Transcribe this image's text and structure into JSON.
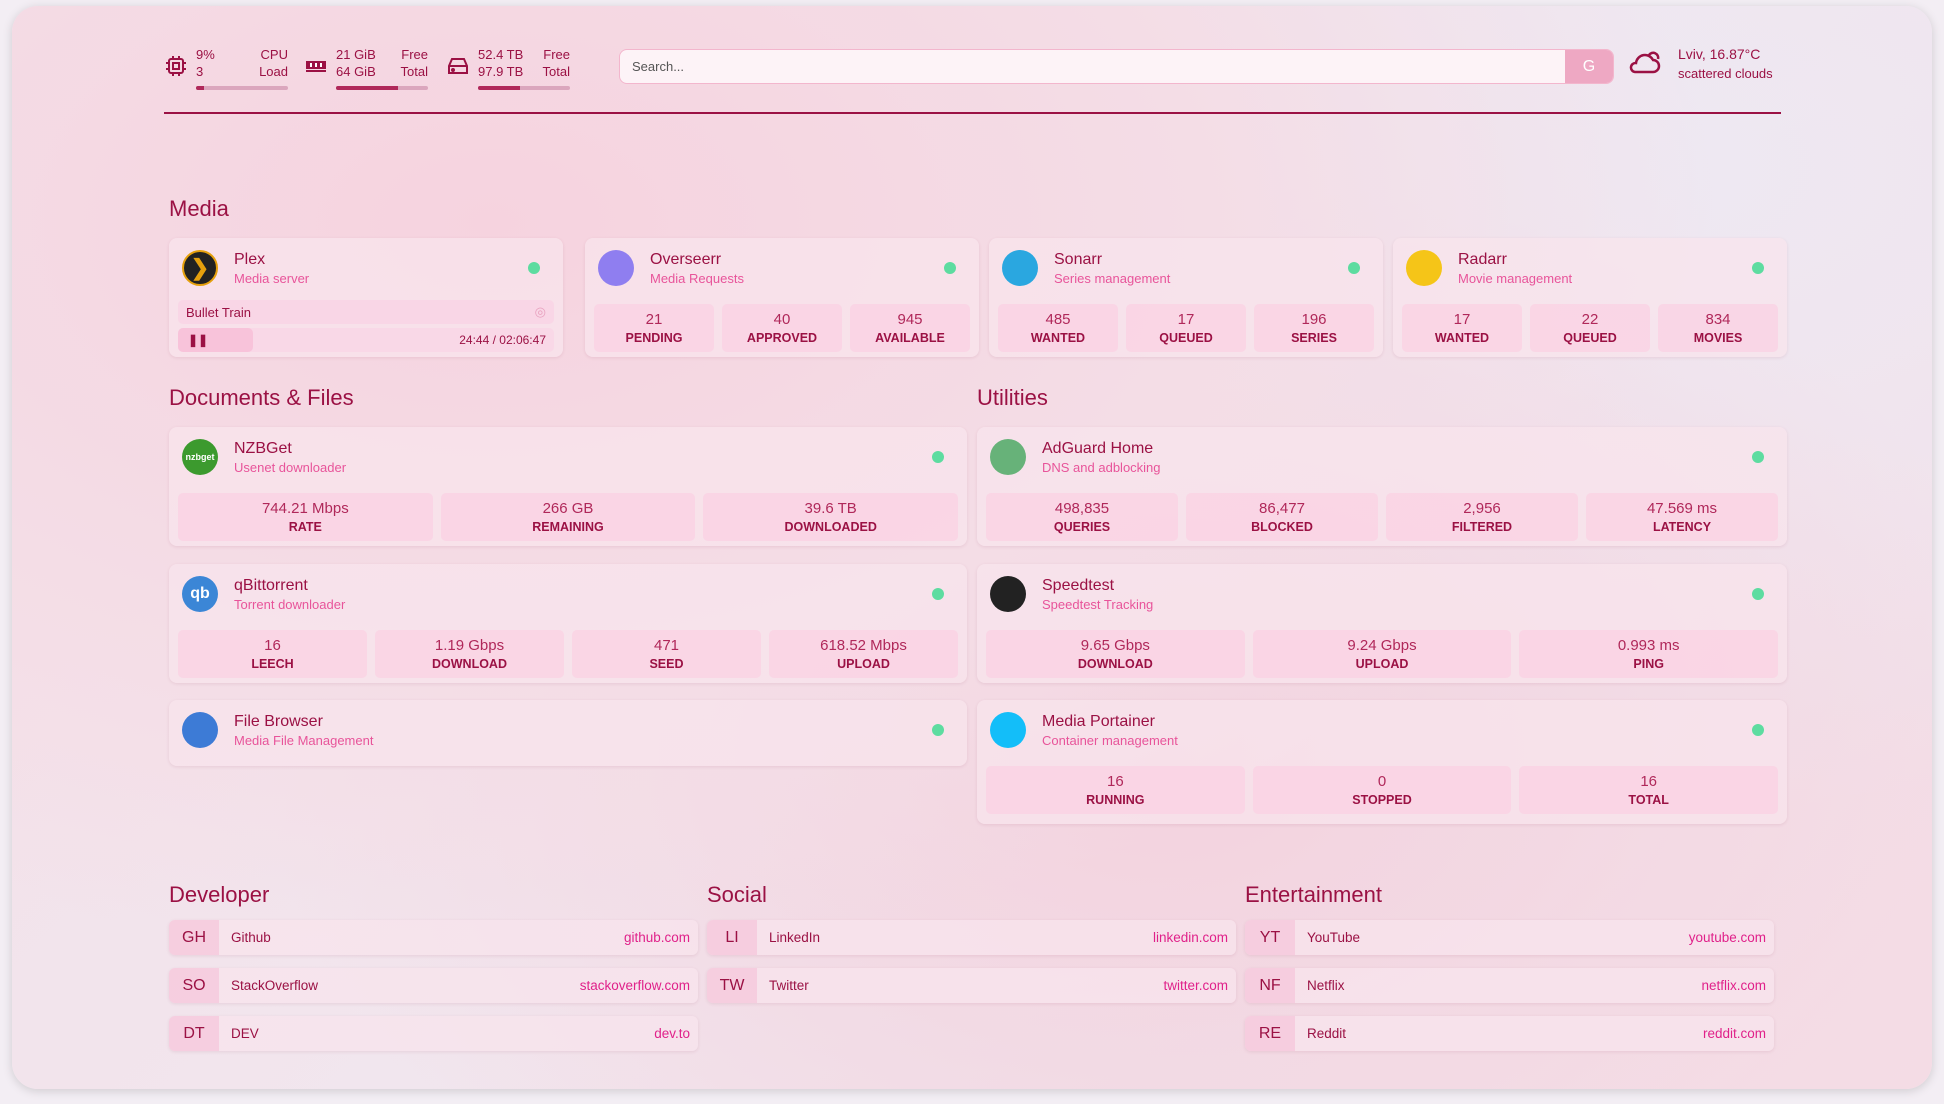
{
  "header": {
    "cpu": {
      "icon": "cpu-icon",
      "value": "9%",
      "label": "CPU",
      "sub_value": "3",
      "sub_label": "Load",
      "percent": 9
    },
    "memory": {
      "icon": "memory-icon",
      "value": "21 GiB",
      "label": "Free",
      "sub_value": "64 GiB",
      "sub_label": "Total",
      "percent": 67
    },
    "disk": {
      "icon": "disk-icon",
      "value": "52.4 TB",
      "label": "Free",
      "sub_value": "97.9 TB",
      "sub_label": "Total",
      "percent": 46
    },
    "search": {
      "placeholder": "Search...",
      "button": "G"
    },
    "weather": {
      "icon": "cloud-sun-icon",
      "location_temp": "Lviv, 16.87°C",
      "condition": "scattered clouds"
    }
  },
  "colors": {
    "accent": "#9b1144",
    "link": "#e0218a",
    "status_ok": "#5ddca0"
  },
  "sections": {
    "media": "Media",
    "documents": "Documents & Files",
    "utilities": "Utilities",
    "developer": "Developer",
    "social": "Social",
    "entertainment": "Entertainment"
  },
  "plex": {
    "name": "Plex",
    "desc": "Media server",
    "now_playing": "Bullet Train",
    "time": "24:44 / 02:06:47",
    "progress_percent": 20
  },
  "services": [
    {
      "id": "overseerr",
      "name": "Overseerr",
      "desc": "Media Requests",
      "icon": "overseerr-icon",
      "color": "#8f7ef0",
      "stats": [
        {
          "v": "21",
          "l": "PENDING"
        },
        {
          "v": "40",
          "l": "APPROVED"
        },
        {
          "v": "945",
          "l": "AVAILABLE"
        }
      ]
    },
    {
      "id": "sonarr",
      "name": "Sonarr",
      "desc": "Series management",
      "icon": "sonarr-icon",
      "color": "#2aa7e0",
      "stats": [
        {
          "v": "485",
          "l": "WANTED"
        },
        {
          "v": "17",
          "l": "QUEUED"
        },
        {
          "v": "196",
          "l": "SERIES"
        }
      ]
    },
    {
      "id": "radarr",
      "name": "Radarr",
      "desc": "Movie management",
      "icon": "radarr-icon",
      "color": "#f5c518",
      "stats": [
        {
          "v": "17",
          "l": "WANTED"
        },
        {
          "v": "22",
          "l": "QUEUED"
        },
        {
          "v": "834",
          "l": "MOVIES"
        }
      ]
    },
    {
      "id": "nzbget",
      "name": "NZBGet",
      "desc": "Usenet downloader",
      "icon": "nzbget-icon",
      "color": "#3c9a2e",
      "badge": "nzbget",
      "stats": [
        {
          "v": "744.21 Mbps",
          "l": "RATE"
        },
        {
          "v": "266 GB",
          "l": "REMAINING"
        },
        {
          "v": "39.6 TB",
          "l": "DOWNLOADED"
        }
      ]
    },
    {
      "id": "qbittorrent",
      "name": "qBittorrent",
      "desc": "Torrent downloader",
      "icon": "qbittorrent-icon",
      "color": "#3b86d6",
      "badge": "qb",
      "stats": [
        {
          "v": "16",
          "l": "LEECH"
        },
        {
          "v": "1.19 Gbps",
          "l": "DOWNLOAD"
        },
        {
          "v": "471",
          "l": "SEED"
        },
        {
          "v": "618.52 Mbps",
          "l": "UPLOAD"
        }
      ]
    },
    {
      "id": "filebrowser",
      "name": "File Browser",
      "desc": "Media File Management",
      "icon": "filebrowser-icon",
      "color": "#3d7bd6",
      "stats": []
    },
    {
      "id": "adguard",
      "name": "AdGuard Home",
      "desc": "DNS and adblocking",
      "icon": "adguard-shield-icon",
      "color": "#67b279",
      "stats": [
        {
          "v": "498,835",
          "l": "QUERIES"
        },
        {
          "v": "86,477",
          "l": "BLOCKED"
        },
        {
          "v": "2,956",
          "l": "FILTERED"
        },
        {
          "v": "47.569 ms",
          "l": "LATENCY"
        }
      ]
    },
    {
      "id": "speedtest",
      "name": "Speedtest",
      "desc": "Speedtest Tracking",
      "icon": "speedtest-icon",
      "color": "#222",
      "stats": [
        {
          "v": "9.65 Gbps",
          "l": "DOWNLOAD"
        },
        {
          "v": "9.24 Gbps",
          "l": "UPLOAD"
        },
        {
          "v": "0.993 ms",
          "l": "PING"
        }
      ]
    },
    {
      "id": "portainer",
      "name": "Media Portainer",
      "desc": "Container management",
      "icon": "portainer-icon",
      "color": "#13bef9",
      "stats": [
        {
          "v": "16",
          "l": "RUNNING"
        },
        {
          "v": "0",
          "l": "STOPPED"
        },
        {
          "v": "16",
          "l": "TOTAL"
        }
      ]
    }
  ],
  "bookmarks": {
    "developer": [
      {
        "abbr": "GH",
        "name": "Github",
        "url": "github.com"
      },
      {
        "abbr": "SO",
        "name": "StackOverflow",
        "url": "stackoverflow.com"
      },
      {
        "abbr": "DT",
        "name": "DEV",
        "url": "dev.to"
      }
    ],
    "social": [
      {
        "abbr": "LI",
        "name": "LinkedIn",
        "url": "linkedin.com"
      },
      {
        "abbr": "TW",
        "name": "Twitter",
        "url": "twitter.com"
      }
    ],
    "entertainment": [
      {
        "abbr": "YT",
        "name": "YouTube",
        "url": "youtube.com"
      },
      {
        "abbr": "NF",
        "name": "Netflix",
        "url": "netflix.com"
      },
      {
        "abbr": "RE",
        "name": "Reddit",
        "url": "reddit.com"
      }
    ]
  }
}
